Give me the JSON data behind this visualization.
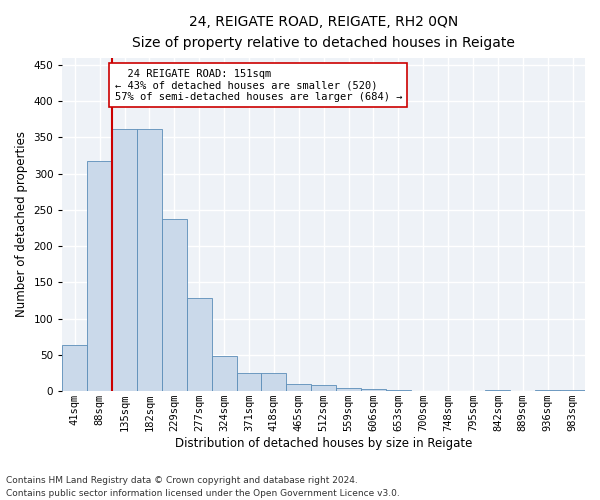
{
  "title_line1": "24, REIGATE ROAD, REIGATE, RH2 0QN",
  "title_line2": "Size of property relative to detached houses in Reigate",
  "xlabel": "Distribution of detached houses by size in Reigate",
  "ylabel": "Number of detached properties",
  "categories": [
    "41sqm",
    "88sqm",
    "135sqm",
    "182sqm",
    "229sqm",
    "277sqm",
    "324sqm",
    "371sqm",
    "418sqm",
    "465sqm",
    "512sqm",
    "559sqm",
    "606sqm",
    "653sqm",
    "700sqm",
    "748sqm",
    "795sqm",
    "842sqm",
    "889sqm",
    "936sqm",
    "983sqm"
  ],
  "values": [
    63,
    318,
    362,
    362,
    237,
    128,
    48,
    25,
    25,
    10,
    8,
    5,
    3,
    1,
    0,
    0,
    0,
    1,
    0,
    1,
    1
  ],
  "bar_color": "#cad9ea",
  "bar_edge_color": "#5b8db8",
  "vline_x": 2.0,
  "vline_color": "#cc0000",
  "annotation_text": "  24 REIGATE ROAD: 151sqm\n← 43% of detached houses are smaller (520)\n57% of semi-detached houses are larger (684) →",
  "annotation_box_color": "#ffffff",
  "annotation_box_edge": "#cc0000",
  "ylim": [
    0,
    460
  ],
  "yticks": [
    0,
    50,
    100,
    150,
    200,
    250,
    300,
    350,
    400,
    450
  ],
  "footer_line1": "Contains HM Land Registry data © Crown copyright and database right 2024.",
  "footer_line2": "Contains public sector information licensed under the Open Government Licence v3.0.",
  "background_color": "#eef2f7",
  "grid_color": "#ffffff",
  "title_fontsize": 10,
  "subtitle_fontsize": 9,
  "axis_label_fontsize": 8.5,
  "tick_fontsize": 7.5,
  "annotation_fontsize": 7.5,
  "footer_fontsize": 6.5
}
